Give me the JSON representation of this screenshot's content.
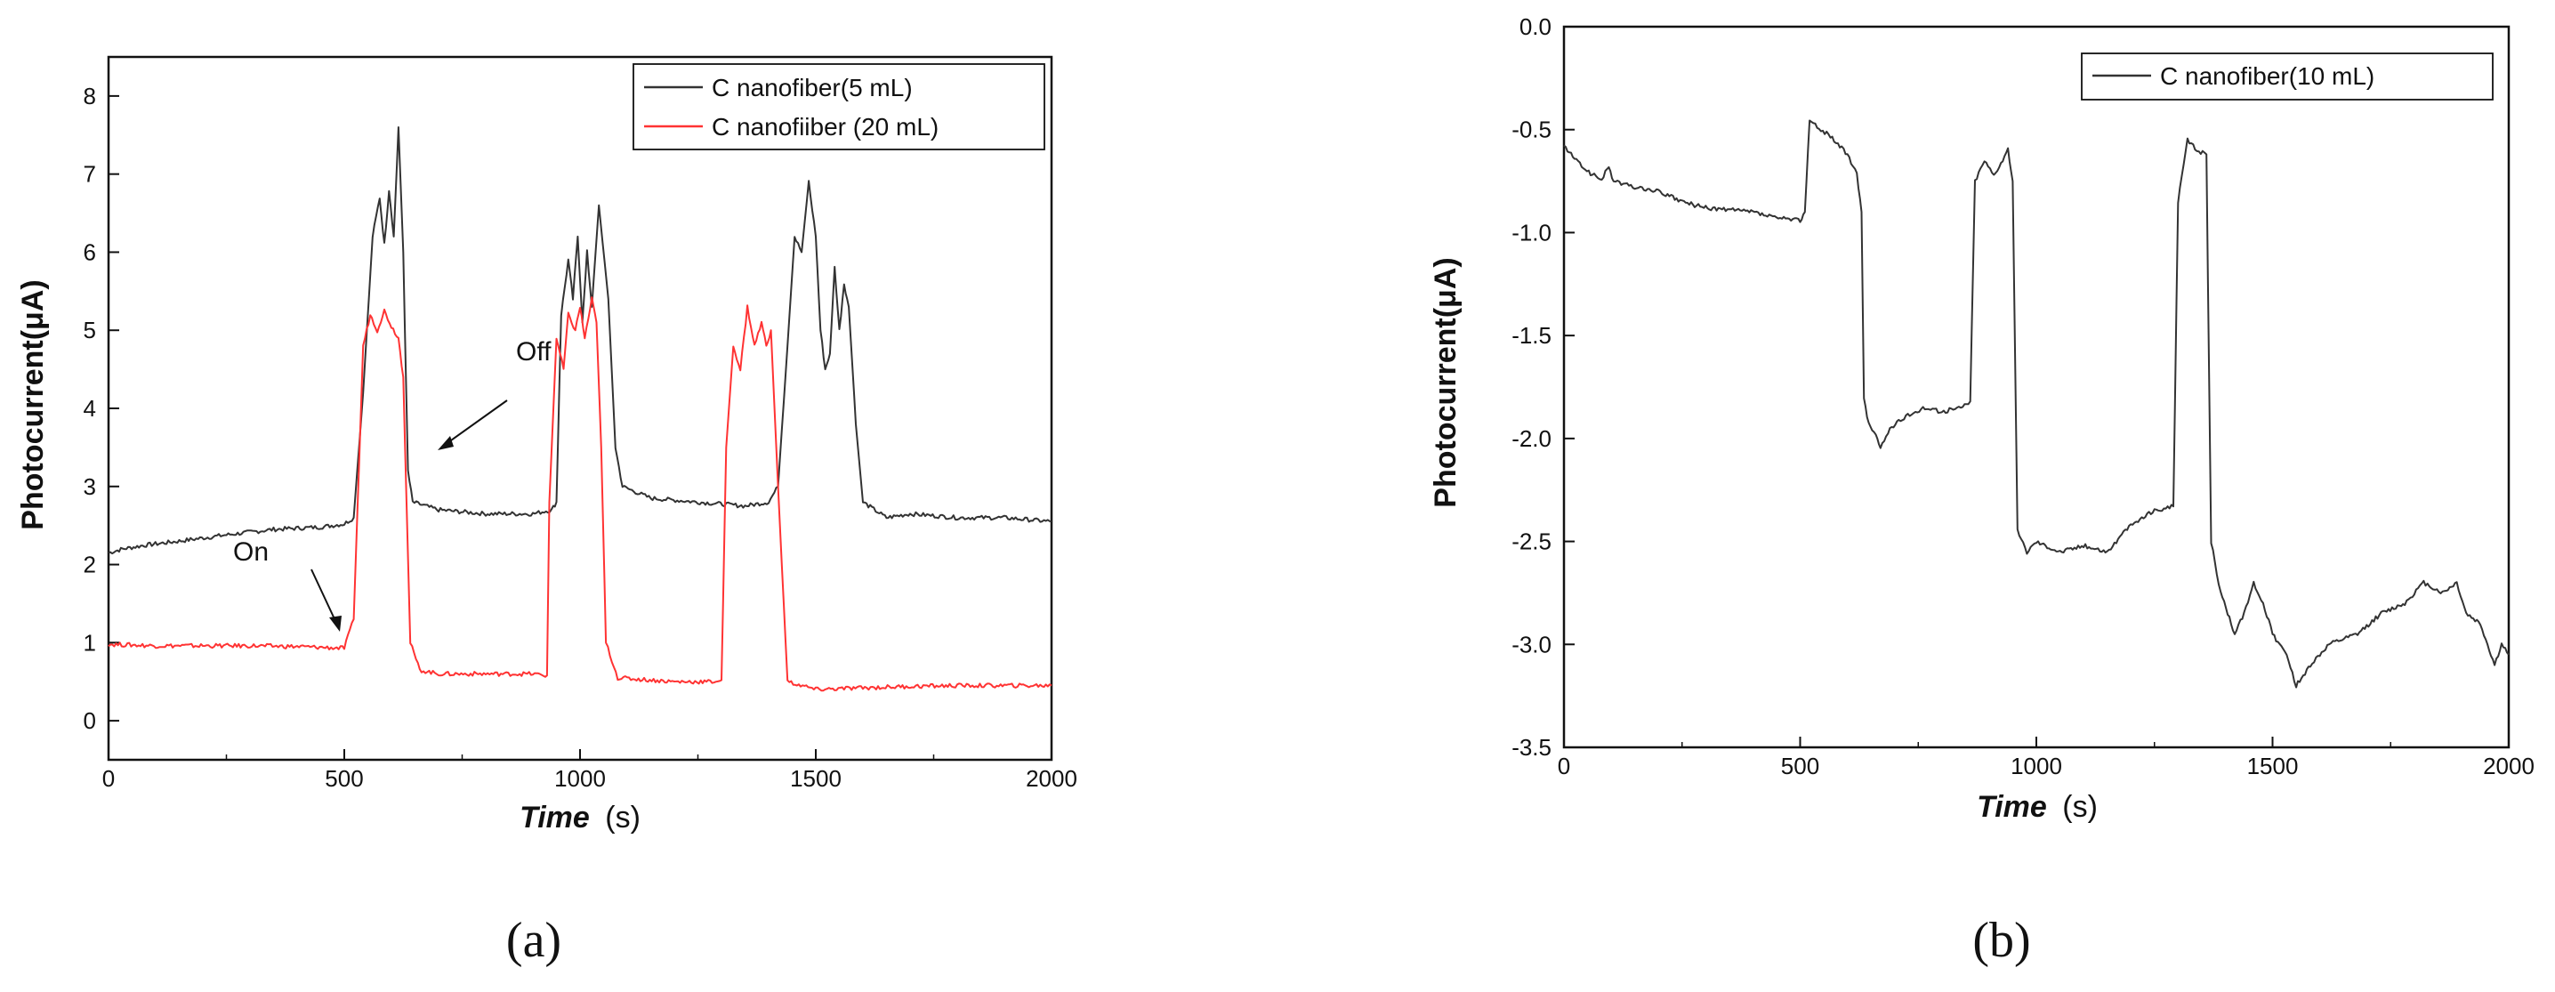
{
  "chart_data": [
    {
      "type": "line",
      "title": "",
      "xlabel_main": "Time",
      "xlabel_unit": "(s)",
      "ylabel": "Photocurrent(μA)",
      "xlim": [
        0,
        2000
      ],
      "ylim": [
        -0.5,
        8.5
      ],
      "xticks": [
        "0",
        "500",
        "1000",
        "1500",
        "2000"
      ],
      "yticks": [
        "0",
        "1",
        "2",
        "3",
        "4",
        "5",
        "6",
        "7",
        "8"
      ],
      "grid": false,
      "legend_position": "top-right",
      "caption": "(a)",
      "annotations": [
        {
          "text": "Off",
          "x": 620,
          "y": 4.3
        },
        {
          "text": "On",
          "x": 520,
          "y": 0.95
        }
      ],
      "series": [
        {
          "name": "C nanofiber(5 mL)",
          "color": "#333333",
          "points": [
            [
              0,
              2.15
            ],
            [
              30,
              2.2
            ],
            [
              80,
              2.25
            ],
            [
              150,
              2.3
            ],
            [
              250,
              2.38
            ],
            [
              350,
              2.45
            ],
            [
              450,
              2.48
            ],
            [
              500,
              2.52
            ],
            [
              520,
              2.6
            ],
            [
              540,
              4.2
            ],
            [
              560,
              6.2
            ],
            [
              575,
              6.7
            ],
            [
              585,
              6.1
            ],
            [
              595,
              6.8
            ],
            [
              605,
              6.2
            ],
            [
              615,
              7.6
            ],
            [
              625,
              6.0
            ],
            [
              635,
              3.2
            ],
            [
              645,
              2.8
            ],
            [
              700,
              2.7
            ],
            [
              800,
              2.65
            ],
            [
              900,
              2.65
            ],
            [
              940,
              2.7
            ],
            [
              950,
              2.8
            ],
            [
              960,
              5.2
            ],
            [
              975,
              5.9
            ],
            [
              985,
              5.4
            ],
            [
              995,
              6.2
            ],
            [
              1005,
              5.1
            ],
            [
              1015,
              6.0
            ],
            [
              1025,
              5.3
            ],
            [
              1040,
              6.6
            ],
            [
              1060,
              5.4
            ],
            [
              1075,
              3.5
            ],
            [
              1090,
              3.0
            ],
            [
              1150,
              2.85
            ],
            [
              1250,
              2.8
            ],
            [
              1350,
              2.75
            ],
            [
              1400,
              2.8
            ],
            [
              1420,
              3.0
            ],
            [
              1440,
              4.8
            ],
            [
              1455,
              6.2
            ],
            [
              1470,
              6.0
            ],
            [
              1485,
              6.9
            ],
            [
              1500,
              6.2
            ],
            [
              1510,
              5.0
            ],
            [
              1520,
              4.5
            ],
            [
              1530,
              4.7
            ],
            [
              1540,
              5.8
            ],
            [
              1550,
              5.0
            ],
            [
              1560,
              5.6
            ],
            [
              1570,
              5.3
            ],
            [
              1585,
              3.8
            ],
            [
              1600,
              2.8
            ],
            [
              1650,
              2.6
            ],
            [
              1700,
              2.65
            ],
            [
              1800,
              2.6
            ],
            [
              1900,
              2.6
            ],
            [
              2000,
              2.55
            ]
          ]
        },
        {
          "name": "C nanofiiber (20 mL)",
          "color": "#ff3333",
          "points": [
            [
              0,
              0.98
            ],
            [
              100,
              0.96
            ],
            [
              200,
              0.96
            ],
            [
              300,
              0.96
            ],
            [
              400,
              0.95
            ],
            [
              500,
              0.93
            ],
            [
              520,
              1.3
            ],
            [
              540,
              4.8
            ],
            [
              555,
              5.2
            ],
            [
              570,
              5.0
            ],
            [
              585,
              5.25
            ],
            [
              600,
              5.05
            ],
            [
              615,
              4.9
            ],
            [
              625,
              4.4
            ],
            [
              640,
              1.0
            ],
            [
              660,
              0.65
            ],
            [
              700,
              0.6
            ],
            [
              800,
              0.6
            ],
            [
              900,
              0.6
            ],
            [
              930,
              0.58
            ],
            [
              935,
              2.8
            ],
            [
              950,
              4.9
            ],
            [
              965,
              4.5
            ],
            [
              975,
              5.2
            ],
            [
              990,
              5.0
            ],
            [
              1000,
              5.3
            ],
            [
              1010,
              4.9
            ],
            [
              1025,
              5.4
            ],
            [
              1035,
              5.1
            ],
            [
              1045,
              3.5
            ],
            [
              1055,
              1.0
            ],
            [
              1080,
              0.55
            ],
            [
              1200,
              0.5
            ],
            [
              1280,
              0.5
            ],
            [
              1300,
              0.52
            ],
            [
              1310,
              3.5
            ],
            [
              1325,
              4.8
            ],
            [
              1340,
              4.5
            ],
            [
              1355,
              5.3
            ],
            [
              1370,
              4.8
            ],
            [
              1385,
              5.1
            ],
            [
              1395,
              4.8
            ],
            [
              1405,
              5.0
            ],
            [
              1420,
              3.0
            ],
            [
              1440,
              0.5
            ],
            [
              1500,
              0.4
            ],
            [
              1600,
              0.42
            ],
            [
              1700,
              0.44
            ],
            [
              1800,
              0.45
            ],
            [
              1900,
              0.45
            ],
            [
              2000,
              0.45
            ]
          ]
        }
      ]
    },
    {
      "type": "line",
      "title": "",
      "xlabel_main": "Time",
      "xlabel_unit": "(s)",
      "ylabel": "Photocurrent(μA)",
      "xlim": [
        0,
        2000
      ],
      "ylim": [
        -3.5,
        0.0
      ],
      "xticks": [
        "0",
        "500",
        "1000",
        "1500",
        "2000"
      ],
      "yticks": [
        "0.0",
        "-0.5",
        "-1.0",
        "-1.5",
        "-2.0",
        "-2.5",
        "-3.0",
        "-3.5"
      ],
      "grid": false,
      "legend_position": "top-right",
      "caption": "(b)",
      "series": [
        {
          "name": "C nanofiber(10 mL)",
          "color": "#333333",
          "points": [
            [
              0,
              -0.58
            ],
            [
              30,
              -0.66
            ],
            [
              60,
              -0.72
            ],
            [
              80,
              -0.74
            ],
            [
              95,
              -0.68
            ],
            [
              105,
              -0.75
            ],
            [
              150,
              -0.78
            ],
            [
              200,
              -0.8
            ],
            [
              250,
              -0.85
            ],
            [
              300,
              -0.88
            ],
            [
              350,
              -0.89
            ],
            [
              400,
              -0.9
            ],
            [
              450,
              -0.93
            ],
            [
              500,
              -0.94
            ],
            [
              510,
              -0.9
            ],
            [
              520,
              -0.45
            ],
            [
              540,
              -0.5
            ],
            [
              560,
              -0.52
            ],
            [
              580,
              -0.57
            ],
            [
              600,
              -0.62
            ],
            [
              620,
              -0.72
            ],
            [
              630,
              -0.9
            ],
            [
              635,
              -1.8
            ],
            [
              645,
              -1.93
            ],
            [
              660,
              -1.98
            ],
            [
              670,
              -2.05
            ],
            [
              690,
              -1.95
            ],
            [
              720,
              -1.9
            ],
            [
              760,
              -1.85
            ],
            [
              800,
              -1.87
            ],
            [
              840,
              -1.85
            ],
            [
              860,
              -1.82
            ],
            [
              870,
              -0.75
            ],
            [
              890,
              -0.65
            ],
            [
              910,
              -0.72
            ],
            [
              940,
              -0.6
            ],
            [
              950,
              -0.75
            ],
            [
              960,
              -2.45
            ],
            [
              980,
              -2.55
            ],
            [
              1000,
              -2.5
            ],
            [
              1050,
              -2.55
            ],
            [
              1100,
              -2.52
            ],
            [
              1150,
              -2.55
            ],
            [
              1200,
              -2.42
            ],
            [
              1250,
              -2.35
            ],
            [
              1290,
              -2.33
            ],
            [
              1300,
              -0.85
            ],
            [
              1320,
              -0.55
            ],
            [
              1340,
              -0.6
            ],
            [
              1360,
              -0.62
            ],
            [
              1370,
              -2.5
            ],
            [
              1390,
              -2.75
            ],
            [
              1420,
              -2.95
            ],
            [
              1440,
              -2.85
            ],
            [
              1460,
              -2.7
            ],
            [
              1480,
              -2.8
            ],
            [
              1500,
              -2.95
            ],
            [
              1530,
              -3.05
            ],
            [
              1550,
              -3.2
            ],
            [
              1580,
              -3.1
            ],
            [
              1620,
              -3.0
            ],
            [
              1680,
              -2.95
            ],
            [
              1730,
              -2.85
            ],
            [
              1780,
              -2.8
            ],
            [
              1820,
              -2.7
            ],
            [
              1860,
              -2.75
            ],
            [
              1890,
              -2.7
            ],
            [
              1910,
              -2.85
            ],
            [
              1940,
              -2.9
            ],
            [
              1970,
              -3.1
            ],
            [
              1985,
              -3.0
            ],
            [
              2000,
              -3.05
            ]
          ]
        }
      ]
    }
  ]
}
